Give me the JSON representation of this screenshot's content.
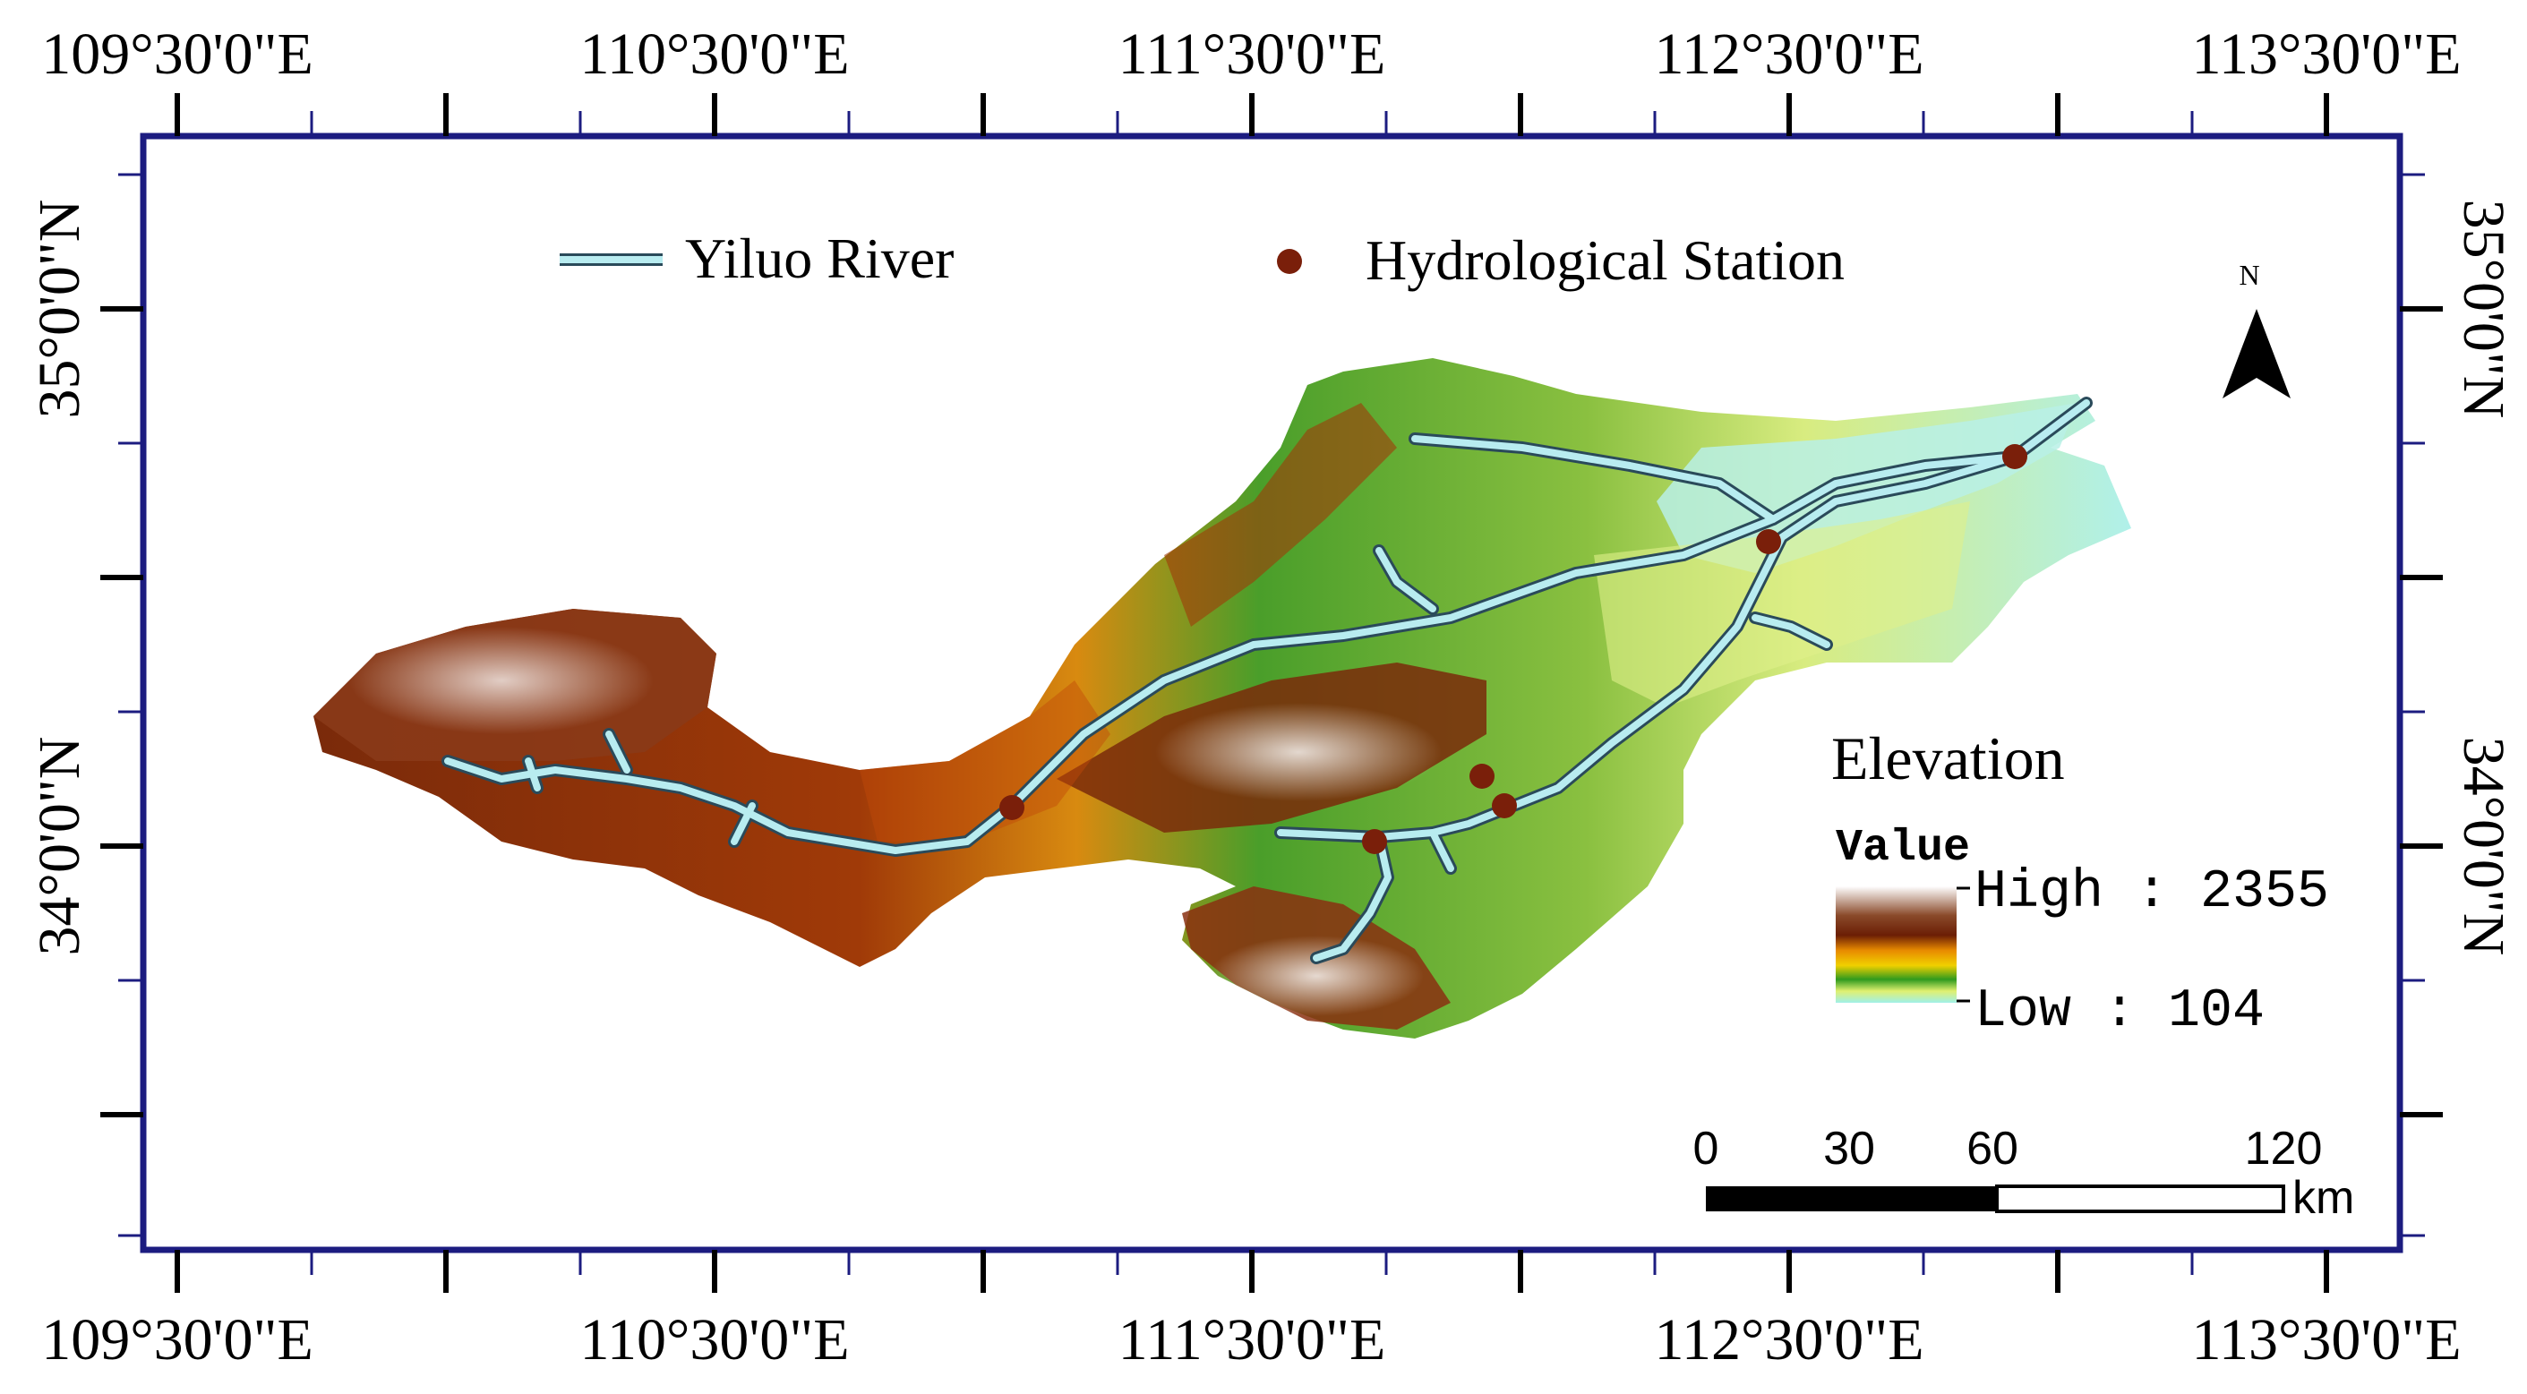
{
  "colors": {
    "frame": "#1c1c80",
    "river_outline": "#2a4a5a",
    "river_fill": "#b8ecf0",
    "station": "#7a1f0a",
    "elev_high": "#ffffff",
    "elev_mid_high": "#6b2a0a",
    "elev_mid": "#e8a000",
    "elev_mid_low": "#2f9a1e",
    "elev_low": "#b0f0ea"
  },
  "axes": {
    "top_labels": [
      "109°30'0\"E",
      "110°30'0\"E",
      "111°30'0\"E",
      "112°30'0\"E",
      "113°30'0\"E"
    ],
    "bottom_labels": [
      "109°30'0\"E",
      "110°30'0\"E",
      "111°30'0\"E",
      "112°30'0\"E",
      "113°30'0\"E"
    ],
    "left_labels": [
      "35°0'0\"N",
      "34°0'0\"N"
    ],
    "right_labels": [
      "35°0'0\"N",
      "34°0'0\"N"
    ]
  },
  "legend": {
    "river_label": "Yiluo River",
    "station_label": "Hydrological Station"
  },
  "north_arrow": {
    "label": "N"
  },
  "elevation_legend": {
    "title": "Elevation",
    "value_label": "Value",
    "high_label": "High : 2355",
    "low_label": "Low : 104"
  },
  "scale_bar": {
    "ticks": [
      "0",
      "30",
      "60",
      "120"
    ],
    "unit": "km"
  }
}
